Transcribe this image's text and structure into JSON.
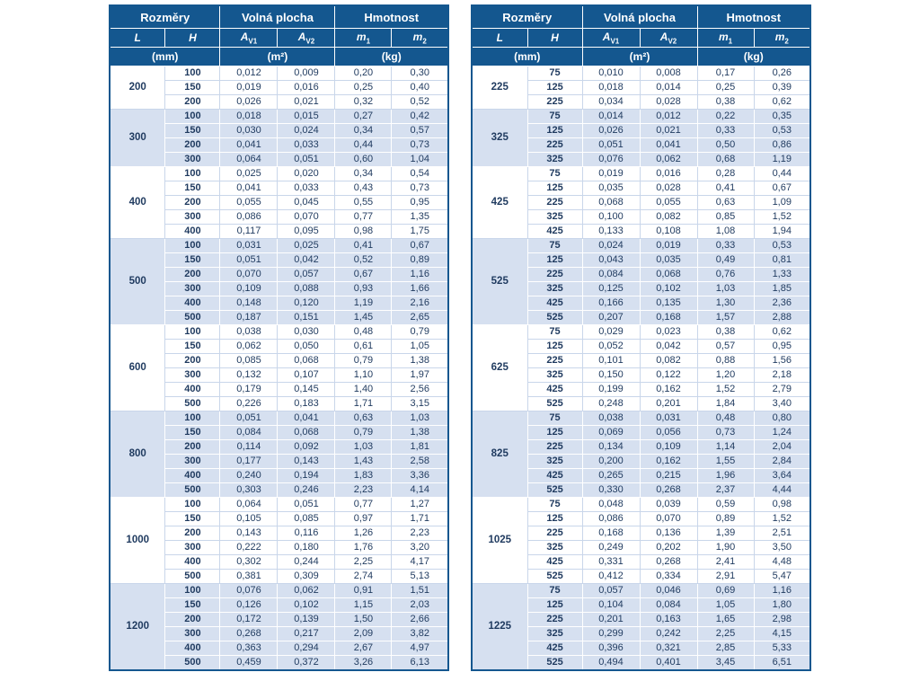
{
  "page": {
    "background": "#ffffff"
  },
  "colors": {
    "header_bg": "#14578f",
    "shaded_group_bg": "#d6e0f0",
    "plain_group_bg": "#ffffff",
    "text": "#1f3a5f",
    "outer_border": "#14578f"
  },
  "header": {
    "group_titles": [
      "Rozměry",
      "Volná plocha",
      "Hmotnost"
    ],
    "columns": [
      {
        "base": "L",
        "sub": ""
      },
      {
        "base": "H",
        "sub": ""
      },
      {
        "base": "A",
        "sub": "V1"
      },
      {
        "base": "A",
        "sub": "V2"
      },
      {
        "base": "m",
        "sub": "1"
      },
      {
        "base": "m",
        "sub": "2"
      }
    ],
    "units": [
      "(mm)",
      "(m²)",
      "(kg)"
    ]
  },
  "chart_data": {
    "type": "table",
    "note": "two dimension/free-area/weight tables, data in tables[]"
  },
  "tables": [
    {
      "groups": [
        {
          "L": "200",
          "rows": [
            [
              "100",
              "0,012",
              "0,009",
              "0,20",
              "0,30"
            ],
            [
              "150",
              "0,019",
              "0,016",
              "0,25",
              "0,40"
            ],
            [
              "200",
              "0,026",
              "0,021",
              "0,32",
              "0,52"
            ]
          ]
        },
        {
          "L": "300",
          "rows": [
            [
              "100",
              "0,018",
              "0,015",
              "0,27",
              "0,42"
            ],
            [
              "150",
              "0,030",
              "0,024",
              "0,34",
              "0,57"
            ],
            [
              "200",
              "0,041",
              "0,033",
              "0,44",
              "0,73"
            ],
            [
              "300",
              "0,064",
              "0,051",
              "0,60",
              "1,04"
            ]
          ]
        },
        {
          "L": "400",
          "rows": [
            [
              "100",
              "0,025",
              "0,020",
              "0,34",
              "0,54"
            ],
            [
              "150",
              "0,041",
              "0,033",
              "0,43",
              "0,73"
            ],
            [
              "200",
              "0,055",
              "0,045",
              "0,55",
              "0,95"
            ],
            [
              "300",
              "0,086",
              "0,070",
              "0,77",
              "1,35"
            ],
            [
              "400",
              "0,117",
              "0,095",
              "0,98",
              "1,75"
            ]
          ]
        },
        {
          "L": "500",
          "rows": [
            [
              "100",
              "0,031",
              "0,025",
              "0,41",
              "0,67"
            ],
            [
              "150",
              "0,051",
              "0,042",
              "0,52",
              "0,89"
            ],
            [
              "200",
              "0,070",
              "0,057",
              "0,67",
              "1,16"
            ],
            [
              "300",
              "0,109",
              "0,088",
              "0,93",
              "1,66"
            ],
            [
              "400",
              "0,148",
              "0,120",
              "1,19",
              "2,16"
            ],
            [
              "500",
              "0,187",
              "0,151",
              "1,45",
              "2,65"
            ]
          ]
        },
        {
          "L": "600",
          "rows": [
            [
              "100",
              "0,038",
              "0,030",
              "0,48",
              "0,79"
            ],
            [
              "150",
              "0,062",
              "0,050",
              "0,61",
              "1,05"
            ],
            [
              "200",
              "0,085",
              "0,068",
              "0,79",
              "1,38"
            ],
            [
              "300",
              "0,132",
              "0,107",
              "1,10",
              "1,97"
            ],
            [
              "400",
              "0,179",
              "0,145",
              "1,40",
              "2,56"
            ],
            [
              "500",
              "0,226",
              "0,183",
              "1,71",
              "3,15"
            ]
          ]
        },
        {
          "L": "800",
          "rows": [
            [
              "100",
              "0,051",
              "0,041",
              "0,63",
              "1,03"
            ],
            [
              "150",
              "0,084",
              "0,068",
              "0,79",
              "1,38"
            ],
            [
              "200",
              "0,114",
              "0,092",
              "1,03",
              "1,81"
            ],
            [
              "300",
              "0,177",
              "0,143",
              "1,43",
              "2,58"
            ],
            [
              "400",
              "0,240",
              "0,194",
              "1,83",
              "3,36"
            ],
            [
              "500",
              "0,303",
              "0,246",
              "2,23",
              "4,14"
            ]
          ]
        },
        {
          "L": "1000",
          "rows": [
            [
              "100",
              "0,064",
              "0,051",
              "0,77",
              "1,27"
            ],
            [
              "150",
              "0,105",
              "0,085",
              "0,97",
              "1,71"
            ],
            [
              "200",
              "0,143",
              "0,116",
              "1,26",
              "2,23"
            ],
            [
              "300",
              "0,222",
              "0,180",
              "1,76",
              "3,20"
            ],
            [
              "400",
              "0,302",
              "0,244",
              "2,25",
              "4,17"
            ],
            [
              "500",
              "0,381",
              "0,309",
              "2,74",
              "5,13"
            ]
          ]
        },
        {
          "L": "1200",
          "rows": [
            [
              "100",
              "0,076",
              "0,062",
              "0,91",
              "1,51"
            ],
            [
              "150",
              "0,126",
              "0,102",
              "1,15",
              "2,03"
            ],
            [
              "200",
              "0,172",
              "0,139",
              "1,50",
              "2,66"
            ],
            [
              "300",
              "0,268",
              "0,217",
              "2,09",
              "3,82"
            ],
            [
              "400",
              "0,363",
              "0,294",
              "2,67",
              "4,97"
            ],
            [
              "500",
              "0,459",
              "0,372",
              "3,26",
              "6,13"
            ]
          ]
        }
      ]
    },
    {
      "groups": [
        {
          "L": "225",
          "rows": [
            [
              "75",
              "0,010",
              "0,008",
              "0,17",
              "0,26"
            ],
            [
              "125",
              "0,018",
              "0,014",
              "0,25",
              "0,39"
            ],
            [
              "225",
              "0,034",
              "0,028",
              "0,38",
              "0,62"
            ]
          ]
        },
        {
          "L": "325",
          "rows": [
            [
              "75",
              "0,014",
              "0,012",
              "0,22",
              "0,35"
            ],
            [
              "125",
              "0,026",
              "0,021",
              "0,33",
              "0,53"
            ],
            [
              "225",
              "0,051",
              "0,041",
              "0,50",
              "0,86"
            ],
            [
              "325",
              "0,076",
              "0,062",
              "0,68",
              "1,19"
            ]
          ]
        },
        {
          "L": "425",
          "rows": [
            [
              "75",
              "0,019",
              "0,016",
              "0,28",
              "0,44"
            ],
            [
              "125",
              "0,035",
              "0,028",
              "0,41",
              "0,67"
            ],
            [
              "225",
              "0,068",
              "0,055",
              "0,63",
              "1,09"
            ],
            [
              "325",
              "0,100",
              "0,082",
              "0,85",
              "1,52"
            ],
            [
              "425",
              "0,133",
              "0,108",
              "1,08",
              "1,94"
            ]
          ]
        },
        {
          "L": "525",
          "rows": [
            [
              "75",
              "0,024",
              "0,019",
              "0,33",
              "0,53"
            ],
            [
              "125",
              "0,043",
              "0,035",
              "0,49",
              "0,81"
            ],
            [
              "225",
              "0,084",
              "0,068",
              "0,76",
              "1,33"
            ],
            [
              "325",
              "0,125",
              "0,102",
              "1,03",
              "1,85"
            ],
            [
              "425",
              "0,166",
              "0,135",
              "1,30",
              "2,36"
            ],
            [
              "525",
              "0,207",
              "0,168",
              "1,57",
              "2,88"
            ]
          ]
        },
        {
          "L": "625",
          "rows": [
            [
              "75",
              "0,029",
              "0,023",
              "0,38",
              "0,62"
            ],
            [
              "125",
              "0,052",
              "0,042",
              "0,57",
              "0,95"
            ],
            [
              "225",
              "0,101",
              "0,082",
              "0,88",
              "1,56"
            ],
            [
              "325",
              "0,150",
              "0,122",
              "1,20",
              "2,18"
            ],
            [
              "425",
              "0,199",
              "0,162",
              "1,52",
              "2,79"
            ],
            [
              "525",
              "0,248",
              "0,201",
              "1,84",
              "3,40"
            ]
          ]
        },
        {
          "L": "825",
          "rows": [
            [
              "75",
              "0,038",
              "0,031",
              "0,48",
              "0,80"
            ],
            [
              "125",
              "0,069",
              "0,056",
              "0,73",
              "1,24"
            ],
            [
              "225",
              "0,134",
              "0,109",
              "1,14",
              "2,04"
            ],
            [
              "325",
              "0,200",
              "0,162",
              "1,55",
              "2,84"
            ],
            [
              "425",
              "0,265",
              "0,215",
              "1,96",
              "3,64"
            ],
            [
              "525",
              "0,330",
              "0,268",
              "2,37",
              "4,44"
            ]
          ]
        },
        {
          "L": "1025",
          "rows": [
            [
              "75",
              "0,048",
              "0,039",
              "0,59",
              "0,98"
            ],
            [
              "125",
              "0,086",
              "0,070",
              "0,89",
              "1,52"
            ],
            [
              "225",
              "0,168",
              "0,136",
              "1,39",
              "2,51"
            ],
            [
              "325",
              "0,249",
              "0,202",
              "1,90",
              "3,50"
            ],
            [
              "425",
              "0,331",
              "0,268",
              "2,41",
              "4,48"
            ],
            [
              "525",
              "0,412",
              "0,334",
              "2,91",
              "5,47"
            ]
          ]
        },
        {
          "L": "1225",
          "rows": [
            [
              "75",
              "0,057",
              "0,046",
              "0,69",
              "1,16"
            ],
            [
              "125",
              "0,104",
              "0,084",
              "1,05",
              "1,80"
            ],
            [
              "225",
              "0,201",
              "0,163",
              "1,65",
              "2,98"
            ],
            [
              "325",
              "0,299",
              "0,242",
              "2,25",
              "4,15"
            ],
            [
              "425",
              "0,396",
              "0,321",
              "2,85",
              "5,33"
            ],
            [
              "525",
              "0,494",
              "0,401",
              "3,45",
              "6,51"
            ]
          ]
        }
      ]
    }
  ]
}
